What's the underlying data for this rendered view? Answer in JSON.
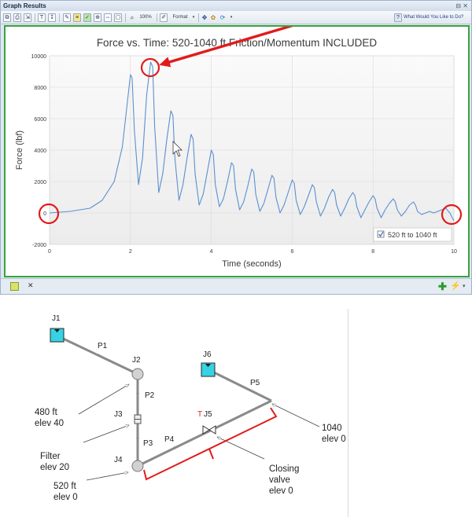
{
  "window": {
    "title": "Graph Results",
    "controls": "⊟ ✕"
  },
  "toolbar": {
    "zoom_label": "100%",
    "format_label": "Format",
    "help_label": "What Would You Like to Do?"
  },
  "chart_data": {
    "type": "line",
    "title": "Force vs. Time: 520-1040 ft Friction/Momentum INCLUDED",
    "xlabel": "Time (seconds)",
    "ylabel": "Force (lbf)",
    "xlim": [
      0,
      10
    ],
    "ylim": [
      -2000,
      10000
    ],
    "x_ticks": [
      "0",
      "2",
      "4",
      "6",
      "8",
      "10"
    ],
    "y_ticks": [
      "-2000",
      "0",
      "2000",
      "4000",
      "6000",
      "8000",
      "10000"
    ],
    "grid": true,
    "legend_position": "bottom-right",
    "series": [
      {
        "name": "520 ft to 1040 ft",
        "color": "#5b8fd1",
        "x": [
          0,
          0.5,
          1.0,
          1.3,
          1.6,
          1.8,
          1.9,
          2.0,
          2.04,
          2.1,
          2.2,
          2.3,
          2.4,
          2.5,
          2.55,
          2.6,
          2.7,
          2.8,
          2.9,
          3.0,
          3.05,
          3.1,
          3.2,
          3.3,
          3.4,
          3.5,
          3.55,
          3.6,
          3.7,
          3.8,
          3.9,
          4.0,
          4.05,
          4.1,
          4.2,
          4.3,
          4.4,
          4.5,
          4.55,
          4.6,
          4.7,
          4.8,
          4.9,
          5.0,
          5.05,
          5.1,
          5.2,
          5.3,
          5.4,
          5.5,
          5.55,
          5.6,
          5.7,
          5.8,
          5.9,
          6.0,
          6.05,
          6.1,
          6.2,
          6.3,
          6.4,
          6.5,
          6.55,
          6.6,
          6.7,
          6.8,
          6.9,
          7.0,
          7.05,
          7.1,
          7.2,
          7.3,
          7.4,
          7.5,
          7.55,
          7.6,
          7.7,
          7.8,
          7.9,
          8.0,
          8.05,
          8.1,
          8.2,
          8.3,
          8.4,
          8.5,
          8.55,
          8.6,
          8.7,
          8.8,
          8.9,
          9.0,
          9.05,
          9.1,
          9.2,
          9.3,
          9.4,
          9.5,
          9.6,
          9.7,
          9.8,
          9.9,
          10.0
        ],
        "values": [
          0,
          100,
          300,
          800,
          2000,
          4200,
          6500,
          8800,
          8600,
          5200,
          1800,
          3500,
          7500,
          9600,
          9300,
          5500,
          1300,
          2500,
          4700,
          6500,
          6200,
          3500,
          800,
          1800,
          3500,
          5000,
          4700,
          2500,
          500,
          1200,
          2600,
          4000,
          3700,
          1800,
          400,
          900,
          2000,
          3200,
          3000,
          1500,
          200,
          700,
          1700,
          2800,
          2600,
          1200,
          100,
          600,
          1500,
          2400,
          2200,
          1000,
          0,
          500,
          1300,
          2100,
          1900,
          800,
          -100,
          400,
          1100,
          1800,
          1600,
          700,
          -200,
          300,
          1000,
          1500,
          1300,
          500,
          -200,
          300,
          900,
          1300,
          1100,
          400,
          -300,
          200,
          700,
          1100,
          900,
          300,
          -300,
          200,
          600,
          900,
          700,
          200,
          -200,
          100,
          500,
          700,
          500,
          100,
          -100,
          0,
          100,
          0,
          100,
          200,
          300,
          0,
          -500
        ]
      }
    ]
  },
  "bottom_bar": {
    "tab_close": "✕",
    "add_glyph": "✚",
    "wand_glyph": "⚡",
    "more_glyph": "▾"
  },
  "network": {
    "junctions": {
      "j1": "J1",
      "j2": "J2",
      "j3": "J3",
      "j4": "J4",
      "j5": "J5",
      "j5_prefix": "T",
      "j6": "J6"
    },
    "pipes": {
      "p1": "P1",
      "p2": "P2",
      "p3": "P3",
      "p4": "P4",
      "p5": "P5"
    },
    "annotations": {
      "pt480_line1": "480 ft",
      "pt480_line2": "elev 40",
      "filter_line1": "Filter",
      "filter_line2": "elev 20",
      "pt520_line1": "520 ft",
      "pt520_line2": "elev 0",
      "valve_line1": "Closing",
      "valve_line2": "valve",
      "valve_line3": "elev 0",
      "pt1040_line1": "1040 ",
      "pt1040_line2": "elev 0"
    },
    "colors": {
      "pipe": "#8a8a8a",
      "tank": "#35d3e3",
      "highlight": "#e11b1b",
      "junction": "#d2d2d2"
    }
  }
}
